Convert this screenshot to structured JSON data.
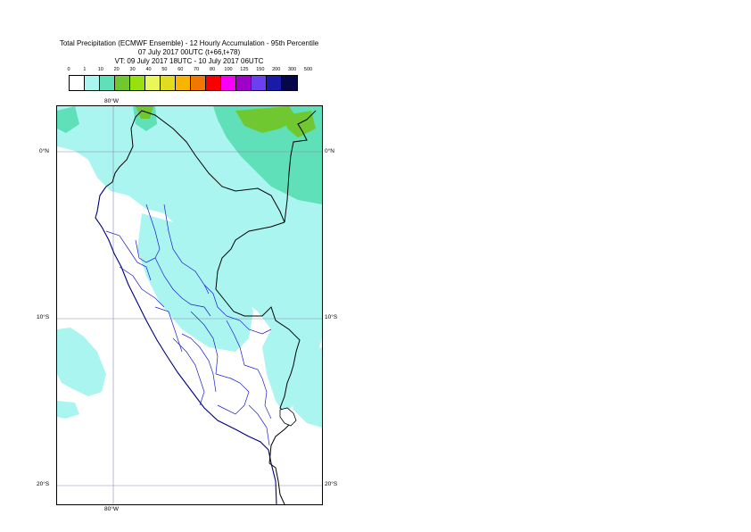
{
  "title": {
    "line1": "Total Precipitation (ECMWF Ensemble) - 12 Hourly Accumulation - 95th Percentile",
    "line2": "07 July 2017 00UTC (t+66,t+78)",
    "line3": "VT: 09 July 2017 18UTC - 10 July 2017 06UTC"
  },
  "legend": {
    "thresholds": [
      "0",
      "1",
      "10",
      "20",
      "30",
      "40",
      "50",
      "60",
      "70",
      "80",
      "100",
      "125",
      "150",
      "200",
      "300",
      "500"
    ],
    "colors": [
      "#ffffff",
      "#aaf5f0",
      "#5fe0b8",
      "#70c830",
      "#99e010",
      "#e8f85a",
      "#e0dd20",
      "#f8b400",
      "#f07800",
      "#f80000",
      "#f800f8",
      "#a000c8",
      "#6a40f0",
      "#1a1aa8",
      "#06064a"
    ]
  },
  "map": {
    "lon_label_top": "80°W",
    "lon_label_bottom": "80°W",
    "lat_labels_left": [
      "0°N",
      "10°S",
      "20°S"
    ],
    "lat_labels_right": [
      "0°N",
      "10°S",
      "20°S"
    ]
  }
}
